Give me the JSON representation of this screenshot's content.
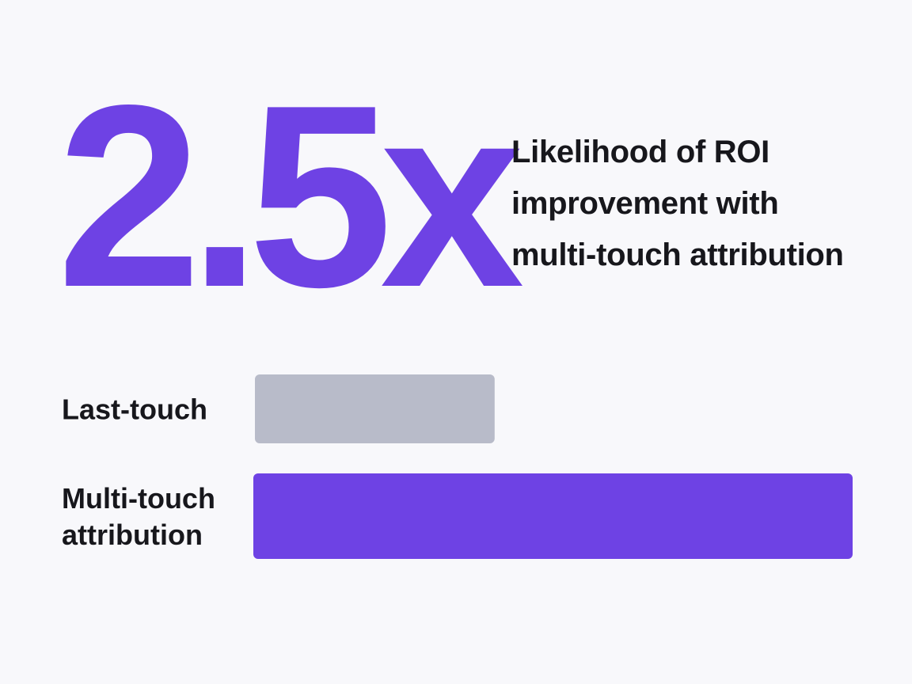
{
  "headline": {
    "stat": "2.5x",
    "caption_lines": [
      "Likelihood of ROI",
      "improvement with",
      "multi-touch attribution"
    ]
  },
  "colors": {
    "accent": "#6e42e4",
    "muted_bar": "#b8bbc9",
    "text": "#17171c",
    "background": "#f8f8fb"
  },
  "chart_data": {
    "type": "bar",
    "orientation": "horizontal",
    "title": "",
    "xlabel": "",
    "ylabel": "",
    "grid": false,
    "categories": [
      [
        "Last-touch"
      ],
      [
        "Multi-touch",
        "attribution"
      ]
    ],
    "values": [
      1,
      2.5
    ],
    "xlim": [
      0,
      2.5
    ],
    "bar_colors": [
      "#b8bbc9",
      "#6e42e4"
    ]
  }
}
